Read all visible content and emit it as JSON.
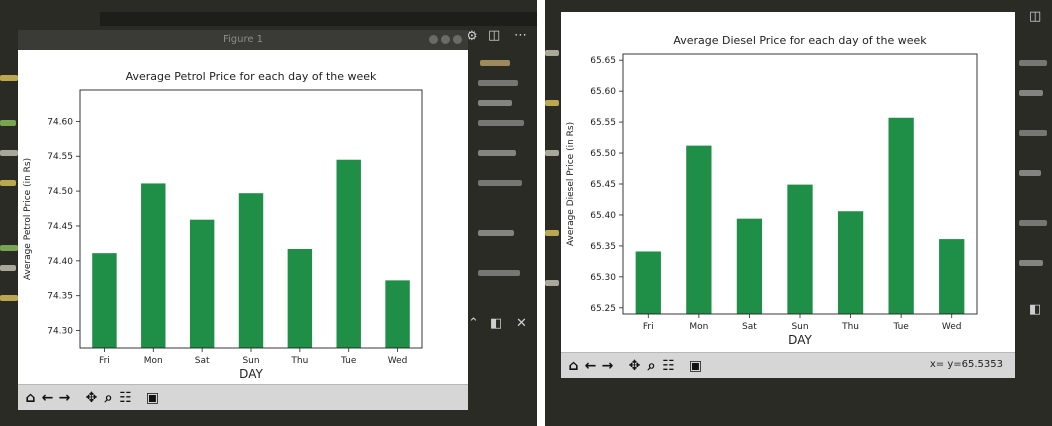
{
  "figure_window_title": "Figure 1",
  "left_chart": {
    "title": "Average Petrol Price for each day of the week",
    "chart_data": {
      "type": "bar",
      "title": "Average Petrol Price for each day of the week",
      "xlabel": "DAY",
      "ylabel": "Average Petrol Price (in Rs)",
      "categories": [
        "Fri",
        "Mon",
        "Sat",
        "Sun",
        "Thu",
        "Tue",
        "Wed"
      ],
      "values": [
        74.411,
        74.511,
        74.459,
        74.497,
        74.417,
        74.545,
        74.372
      ],
      "ylim": [
        74.275,
        74.645
      ],
      "yticks": [
        "74.30",
        "74.35",
        "74.40",
        "74.45",
        "74.50",
        "74.55",
        "74.60"
      ],
      "bar_color": "#1f8e47",
      "grid": false
    }
  },
  "right_chart": {
    "title": "Average Diesel Price for each day of the week",
    "coords_readout": "x= y=65.5353",
    "chart_data": {
      "type": "bar",
      "title": "Average Diesel Price for each day of the week",
      "xlabel": "DAY",
      "ylabel": "Average Diesel Price (in Rs)",
      "categories": [
        "Fri",
        "Mon",
        "Sat",
        "Sun",
        "Thu",
        "Tue",
        "Wed"
      ],
      "values": [
        65.341,
        65.512,
        65.394,
        65.449,
        65.406,
        65.557,
        65.361
      ],
      "ylim": [
        65.24,
        65.66
      ],
      "yticks": [
        "65.25",
        "65.30",
        "65.35",
        "65.40",
        "65.45",
        "65.50",
        "65.55",
        "65.60",
        "65.65"
      ],
      "bar_color": "#1f8e47",
      "grid": false
    }
  },
  "toolbar": {
    "home_icon": "home-icon",
    "back_icon": "back-arrow-icon",
    "forward_icon": "forward-arrow-icon",
    "pan_icon": "pan-icon",
    "zoom_icon": "zoom-icon",
    "configure_icon": "configure-icon",
    "save_icon": "save-icon"
  }
}
